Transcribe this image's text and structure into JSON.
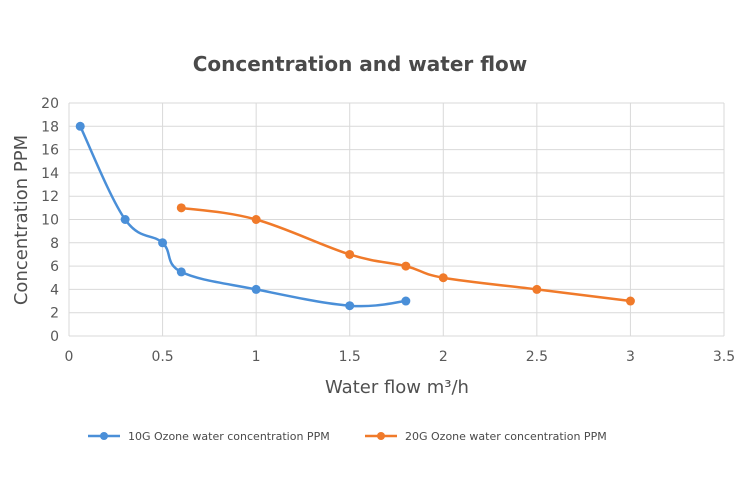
{
  "chart_data": {
    "type": "line",
    "title": "Concentration and water flow",
    "xlabel": "Water flow m³/h",
    "ylabel": "Concentration PPM",
    "xlim": [
      0,
      3.5
    ],
    "ylim": [
      0,
      20
    ],
    "xticks": [
      "0",
      "0.5",
      "1",
      "1.5",
      "2",
      "2.5",
      "3",
      "3.5"
    ],
    "yticks": [
      "0",
      "2",
      "4",
      "6",
      "8",
      "10",
      "12",
      "14",
      "16",
      "18",
      "20"
    ],
    "grid": true,
    "legend_position": "bottom",
    "series": [
      {
        "name": "10G Ozone water concentration PPM",
        "color": "#4a8fd8",
        "points": [
          [
            0.06,
            18
          ],
          [
            0.3,
            10
          ],
          [
            0.5,
            8
          ],
          [
            0.6,
            5.5
          ],
          [
            1,
            4
          ],
          [
            1.5,
            2.6
          ],
          [
            1.8,
            3
          ]
        ]
      },
      {
        "name": "20G Ozone water concentration PPM",
        "color": "#f07a2a",
        "points": [
          [
            0.6,
            11
          ],
          [
            1,
            10
          ],
          [
            1.5,
            7
          ],
          [
            1.8,
            6
          ],
          [
            2,
            5
          ],
          [
            2.5,
            4
          ],
          [
            3,
            3
          ]
        ]
      }
    ]
  }
}
